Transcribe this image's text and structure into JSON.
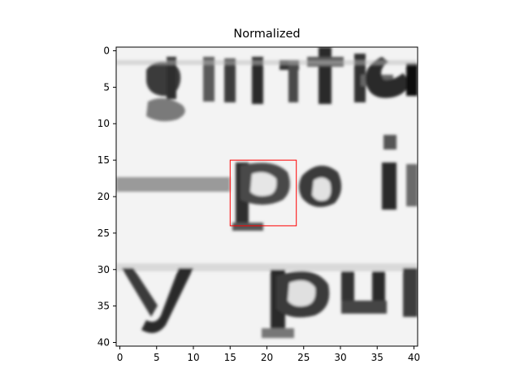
{
  "figure": {
    "title": "Normalized"
  },
  "image_axes": {
    "x_ticks": [
      0,
      5,
      10,
      15,
      20,
      25,
      30,
      35,
      40
    ],
    "y_ticks": [
      0,
      5,
      10,
      15,
      20,
      25,
      30,
      35,
      40
    ],
    "xlim": [
      -0.5,
      40.5
    ],
    "ylim": [
      40.5,
      -0.5
    ],
    "grid": false,
    "colormap": "gray"
  },
  "highlight_box": {
    "x": [
      15,
      24
    ],
    "y": [
      15,
      24
    ],
    "color": "#ff0000"
  },
  "image_content": {
    "description_text": [
      "grittc",
      "poi",
      "y pu"
    ],
    "background": "#f2f2f2",
    "ink": "#1a1a1a"
  }
}
